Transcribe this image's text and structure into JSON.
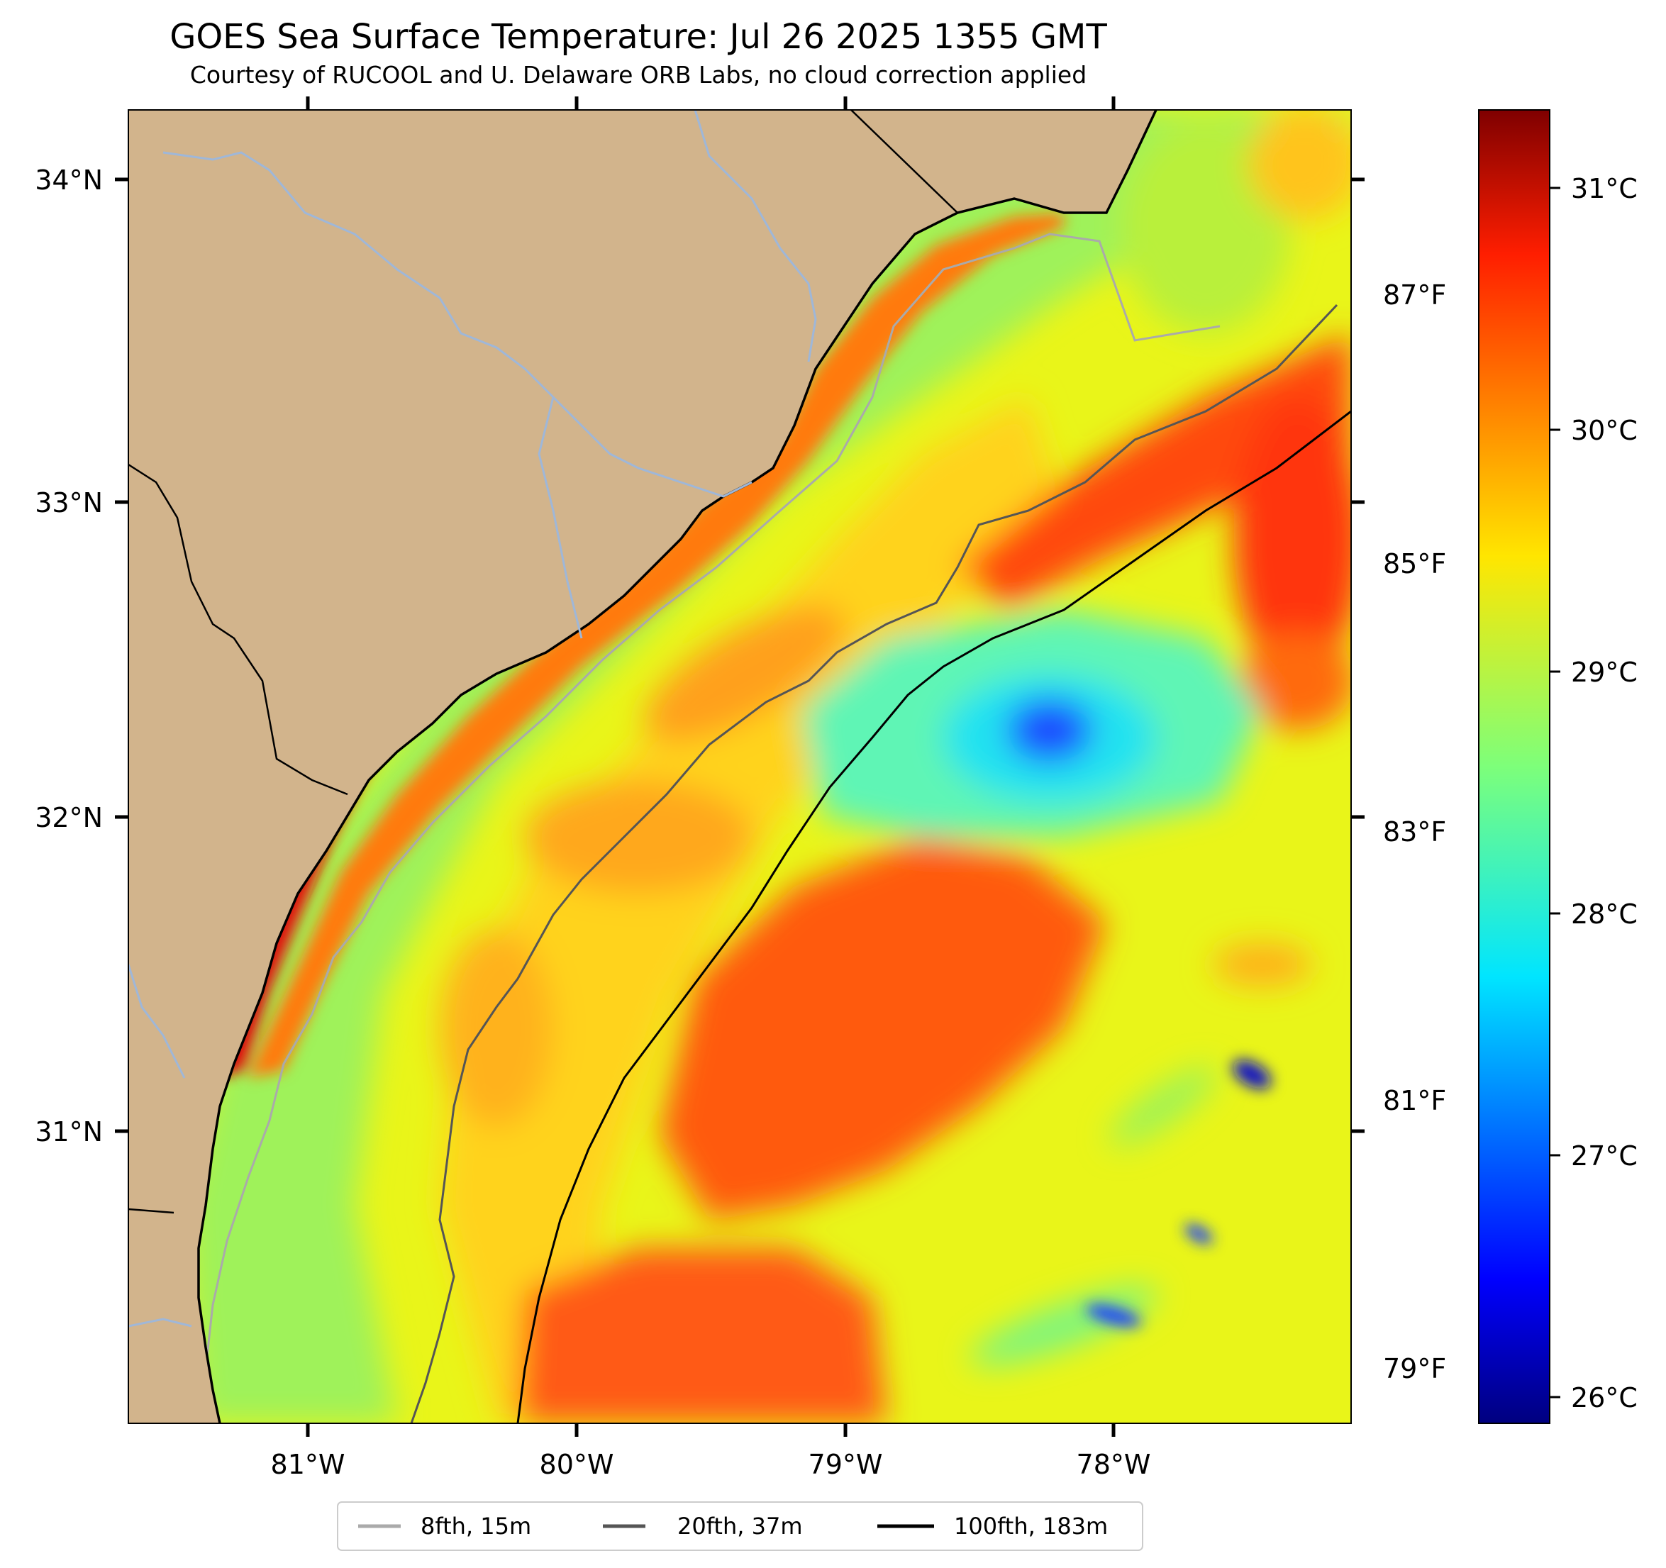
{
  "title": "GOES Sea Surface Temperature: Jul 26 2025 1355 GMT",
  "subtitle": "Courtesy of RUCOOL and U. Delaware ORB Labs, no cloud correction applied",
  "map": {
    "lon_range": [
      -81.67,
      -77.12
    ],
    "lat_range": [
      30.23,
      34.23
    ],
    "lat_ticks": [
      "34°N",
      "33°N",
      "32°N",
      "31°N"
    ],
    "lon_ticks": [
      "81°W",
      "80°W",
      "79°W",
      "78°W"
    ],
    "land_color": "#d2b48c",
    "river_color": "#9fb7d8"
  },
  "colorbar": {
    "colormap": "jet",
    "celsius_ticks": [
      "31°C",
      "30°C",
      "29°C",
      "28°C",
      "27°C",
      "26°C"
    ],
    "fahrenheit_ticks": [
      "87°F",
      "85°F",
      "83°F",
      "81°F",
      "79°F"
    ]
  },
  "legend": {
    "items": [
      {
        "label": "8fth, 15m",
        "color": "#aaaaaa"
      },
      {
        "label": "20fth, 37m",
        "color": "#555555"
      },
      {
        "label": "100fth, 183m",
        "color": "#000000"
      }
    ]
  }
}
